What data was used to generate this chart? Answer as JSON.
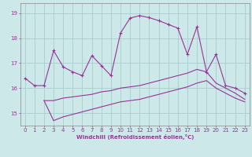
{
  "xlabel": "Windchill (Refroidissement éolien,°C)",
  "bg_color": "#cce8e8",
  "grid_color": "#aacccc",
  "line_color": "#993399",
  "xlim": [
    -0.5,
    23.5
  ],
  "ylim": [
    14.5,
    19.4
  ],
  "xticks": [
    0,
    1,
    2,
    3,
    4,
    5,
    6,
    7,
    8,
    9,
    10,
    11,
    12,
    13,
    14,
    15,
    16,
    17,
    18,
    19,
    20,
    21,
    22,
    23
  ],
  "yticks": [
    15,
    16,
    17,
    18,
    19
  ],
  "line1_x": [
    0,
    1,
    2,
    3,
    4,
    5,
    6,
    7,
    8,
    9,
    10,
    11,
    12,
    13,
    14,
    15,
    16,
    17,
    18,
    19,
    20,
    21,
    22,
    23
  ],
  "line1_y": [
    16.4,
    16.1,
    16.1,
    17.5,
    16.85,
    16.65,
    16.5,
    17.3,
    16.9,
    16.5,
    18.2,
    18.8,
    18.9,
    18.82,
    18.7,
    18.55,
    18.4,
    17.35,
    18.45,
    16.65,
    17.35,
    16.1,
    16.0,
    15.8
  ],
  "line2_x": [
    2,
    3,
    4,
    5,
    6,
    7,
    8,
    9,
    10,
    11,
    12,
    13,
    14,
    15,
    16,
    17,
    18,
    19,
    20,
    21,
    22,
    23
  ],
  "line2_y": [
    15.5,
    15.5,
    15.6,
    15.65,
    15.7,
    15.75,
    15.85,
    15.9,
    16.0,
    16.05,
    16.1,
    16.2,
    16.3,
    16.4,
    16.5,
    16.6,
    16.75,
    16.65,
    16.2,
    16.0,
    15.8,
    15.55
  ],
  "line3_x": [
    2,
    3,
    4,
    5,
    6,
    7,
    8,
    9,
    10,
    11,
    12,
    13,
    14,
    15,
    16,
    17,
    18,
    19,
    20,
    21,
    22,
    23
  ],
  "line3_y": [
    15.5,
    14.7,
    14.85,
    14.95,
    15.05,
    15.15,
    15.25,
    15.35,
    15.45,
    15.5,
    15.55,
    15.65,
    15.75,
    15.85,
    15.95,
    16.05,
    16.2,
    16.3,
    16.0,
    15.8,
    15.6,
    15.45
  ]
}
